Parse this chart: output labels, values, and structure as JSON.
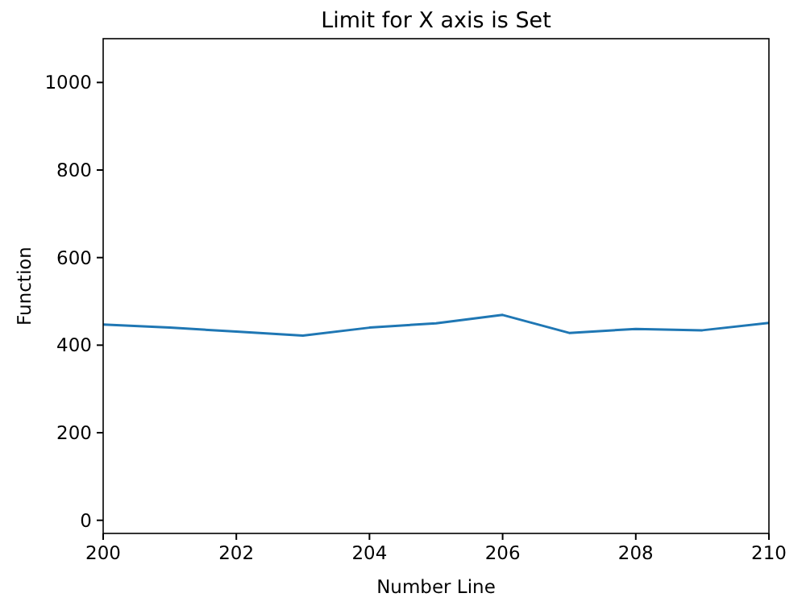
{
  "chart_data": {
    "type": "line",
    "title": "Limit for X axis is Set",
    "xlabel": "Number Line",
    "ylabel": "Function",
    "x": [
      200,
      201,
      202,
      203,
      204,
      205,
      206,
      207,
      208,
      209,
      210
    ],
    "series": [
      {
        "color": "#1f77b4",
        "values": [
          447,
          440,
          431,
          422,
          440,
          450,
          469,
          428,
          437,
          434,
          451
        ]
      }
    ],
    "xlim": [
      200,
      210
    ],
    "xticks": [
      200,
      202,
      204,
      206,
      208,
      210
    ],
    "ylim": [
      -30,
      1100
    ],
    "yticks": [
      0,
      200,
      400,
      600,
      800,
      1000
    ],
    "grid": false,
    "marker": "none",
    "line_style": "solid"
  }
}
